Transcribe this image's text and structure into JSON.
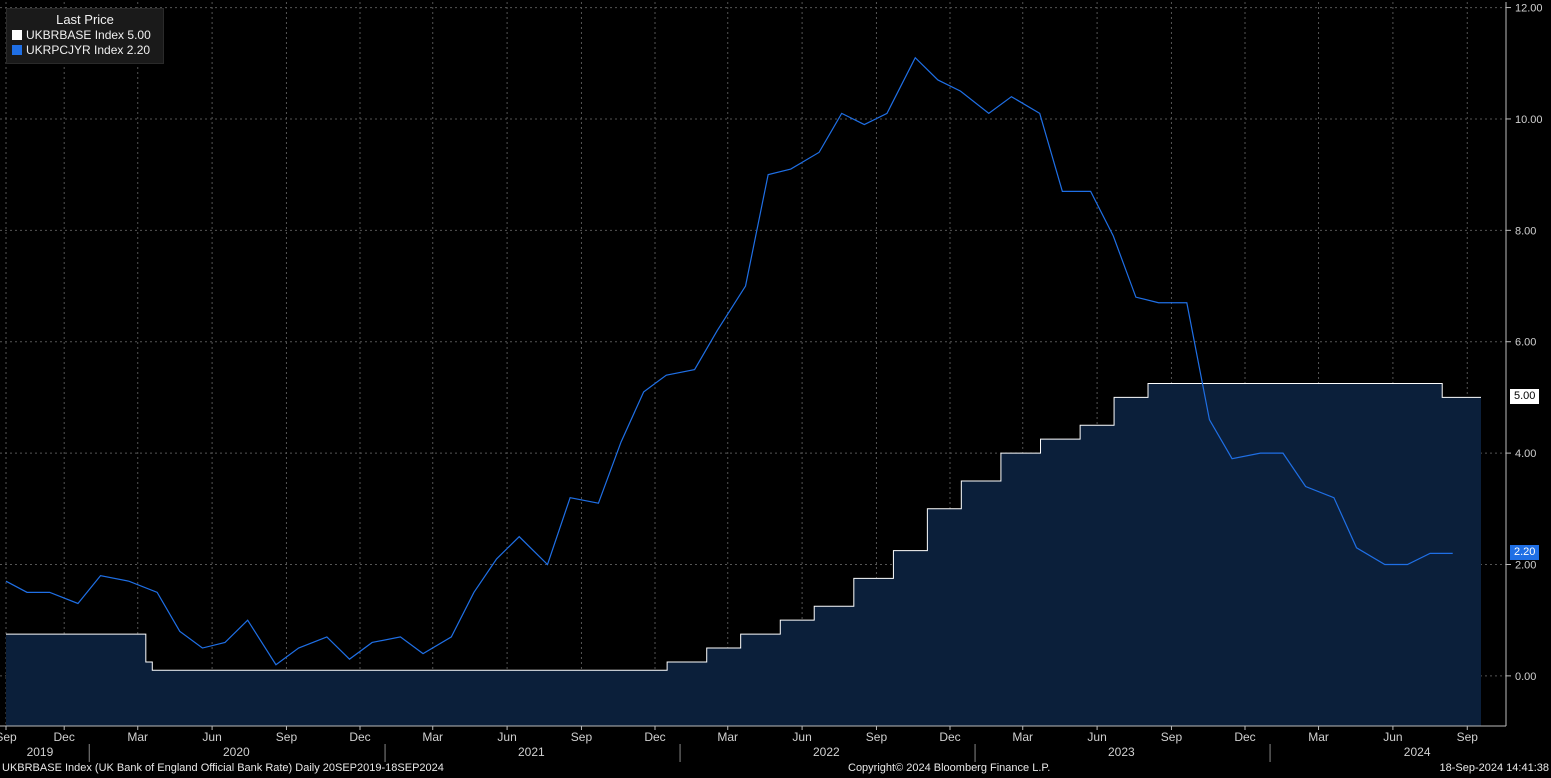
{
  "legend": {
    "title": "Last Price",
    "items": [
      {
        "label": "UKBRBASE Index",
        "value": "5.00",
        "color": "#ffffff"
      },
      {
        "label": "UKRPCJYR Index",
        "value": "2.20",
        "color": "#1f6fe5"
      }
    ]
  },
  "tags": {
    "base_last": "5.00",
    "cpi_last": "2.20"
  },
  "footer": {
    "left": "UKBRBASE Index (UK Bank of England Official Bank Rate)  Daily 20SEP2019-18SEP2024",
    "center": "Copyright© 2024 Bloomberg Finance L.P.",
    "right": "18-Sep-2024 14:41:38"
  },
  "colors": {
    "background": "#000000",
    "rate_line": "#ffffff",
    "rate_fill": "#0b1f3a",
    "cpi_line": "#1f6fe5",
    "grid": "#555555"
  },
  "chart_data": {
    "type": "line",
    "ylim": [
      -0.9,
      12.1
    ],
    "yticks": [
      "0.00",
      "2.00",
      "4.00",
      "6.00",
      "8.00",
      "10.00",
      "12.00"
    ],
    "ytick_values": [
      0,
      2,
      4,
      6,
      8,
      10,
      12
    ],
    "xlim": [
      "2019-09-20",
      "2024-09-18"
    ],
    "month_ticks": [
      {
        "label": "Sep",
        "date": "2019-09-20"
      },
      {
        "label": "Dec",
        "date": "2019-12-01"
      },
      {
        "label": "Mar",
        "date": "2020-03-01"
      },
      {
        "label": "Jun",
        "date": "2020-06-01"
      },
      {
        "label": "Sep",
        "date": "2020-09-01"
      },
      {
        "label": "Dec",
        "date": "2020-12-01"
      },
      {
        "label": "Mar",
        "date": "2021-03-01"
      },
      {
        "label": "Jun",
        "date": "2021-06-01"
      },
      {
        "label": "Sep",
        "date": "2021-09-01"
      },
      {
        "label": "Dec",
        "date": "2021-12-01"
      },
      {
        "label": "Mar",
        "date": "2022-03-01"
      },
      {
        "label": "Jun",
        "date": "2022-06-01"
      },
      {
        "label": "Sep",
        "date": "2022-09-01"
      },
      {
        "label": "Dec",
        "date": "2022-12-01"
      },
      {
        "label": "Mar",
        "date": "2023-03-01"
      },
      {
        "label": "Jun",
        "date": "2023-06-01"
      },
      {
        "label": "Sep",
        "date": "2023-09-01"
      },
      {
        "label": "Dec",
        "date": "2023-12-01"
      },
      {
        "label": "Mar",
        "date": "2024-03-01"
      },
      {
        "label": "Jun",
        "date": "2024-06-01"
      },
      {
        "label": "Sep",
        "date": "2024-09-01"
      }
    ],
    "year_labels": [
      {
        "label": "2019",
        "date": "2019-11-01"
      },
      {
        "label": "2020",
        "date": "2020-07-01"
      },
      {
        "label": "2021",
        "date": "2021-07-01"
      },
      {
        "label": "2022",
        "date": "2022-07-01"
      },
      {
        "label": "2023",
        "date": "2023-07-01"
      },
      {
        "label": "2024",
        "date": "2024-07-01"
      }
    ],
    "year_boundaries": [
      "2020-01-01",
      "2021-01-01",
      "2022-01-01",
      "2023-01-01",
      "2024-01-01"
    ],
    "series": [
      {
        "name": "UKBRBASE Index",
        "step": true,
        "points": [
          [
            "2019-09-20",
            0.75
          ],
          [
            "2020-03-11",
            0.25
          ],
          [
            "2020-03-19",
            0.1
          ],
          [
            "2021-12-16",
            0.25
          ],
          [
            "2022-02-03",
            0.5
          ],
          [
            "2022-03-17",
            0.75
          ],
          [
            "2022-05-05",
            1.0
          ],
          [
            "2022-06-16",
            1.25
          ],
          [
            "2022-08-04",
            1.75
          ],
          [
            "2022-09-22",
            2.25
          ],
          [
            "2022-11-03",
            3.0
          ],
          [
            "2022-12-15",
            3.5
          ],
          [
            "2023-02-02",
            4.0
          ],
          [
            "2023-03-23",
            4.25
          ],
          [
            "2023-05-11",
            4.5
          ],
          [
            "2023-06-22",
            5.0
          ],
          [
            "2023-08-03",
            5.25
          ],
          [
            "2024-08-01",
            5.0
          ],
          [
            "2024-09-18",
            5.0
          ]
        ]
      },
      {
        "name": "UKRPCJYR Index",
        "step": false,
        "points": [
          [
            "2019-09-20",
            1.7
          ],
          [
            "2019-10-16",
            1.5
          ],
          [
            "2019-11-13",
            1.5
          ],
          [
            "2019-12-18",
            1.3
          ],
          [
            "2020-01-15",
            1.8
          ],
          [
            "2020-02-19",
            1.7
          ],
          [
            "2020-03-25",
            1.5
          ],
          [
            "2020-04-22",
            0.8
          ],
          [
            "2020-05-20",
            0.5
          ],
          [
            "2020-06-17",
            0.6
          ],
          [
            "2020-07-15",
            1.0
          ],
          [
            "2020-08-19",
            0.2
          ],
          [
            "2020-09-16",
            0.5
          ],
          [
            "2020-10-21",
            0.7
          ],
          [
            "2020-11-18",
            0.3
          ],
          [
            "2020-12-16",
            0.6
          ],
          [
            "2021-01-20",
            0.7
          ],
          [
            "2021-02-17",
            0.4
          ],
          [
            "2021-03-24",
            0.7
          ],
          [
            "2021-04-21",
            1.5
          ],
          [
            "2021-05-19",
            2.1
          ],
          [
            "2021-06-16",
            2.5
          ],
          [
            "2021-07-21",
            2.0
          ],
          [
            "2021-08-18",
            3.2
          ],
          [
            "2021-09-22",
            3.1
          ],
          [
            "2021-10-20",
            4.2
          ],
          [
            "2021-11-17",
            5.1
          ],
          [
            "2021-12-15",
            5.4
          ],
          [
            "2022-01-19",
            5.5
          ],
          [
            "2022-02-16",
            6.2
          ],
          [
            "2022-03-23",
            7.0
          ],
          [
            "2022-04-20",
            9.0
          ],
          [
            "2022-05-18",
            9.1
          ],
          [
            "2022-06-22",
            9.4
          ],
          [
            "2022-07-20",
            10.1
          ],
          [
            "2022-08-17",
            9.9
          ],
          [
            "2022-09-14",
            10.1
          ],
          [
            "2022-10-19",
            11.1
          ],
          [
            "2022-11-16",
            10.7
          ],
          [
            "2022-12-14",
            10.5
          ],
          [
            "2023-01-18",
            10.1
          ],
          [
            "2023-02-15",
            10.4
          ],
          [
            "2023-03-22",
            10.1
          ],
          [
            "2023-04-19",
            8.7
          ],
          [
            "2023-05-24",
            8.7
          ],
          [
            "2023-06-21",
            7.9
          ],
          [
            "2023-07-19",
            6.8
          ],
          [
            "2023-08-16",
            6.7
          ],
          [
            "2023-09-20",
            6.7
          ],
          [
            "2023-10-18",
            4.6
          ],
          [
            "2023-11-15",
            3.9
          ],
          [
            "2023-12-20",
            4.0
          ],
          [
            "2024-01-17",
            4.0
          ],
          [
            "2024-02-14",
            3.4
          ],
          [
            "2024-03-20",
            3.2
          ],
          [
            "2024-04-17",
            2.3
          ],
          [
            "2024-05-22",
            2.0
          ],
          [
            "2024-06-19",
            2.0
          ],
          [
            "2024-07-17",
            2.2
          ],
          [
            "2024-08-14",
            2.2
          ]
        ]
      }
    ]
  }
}
